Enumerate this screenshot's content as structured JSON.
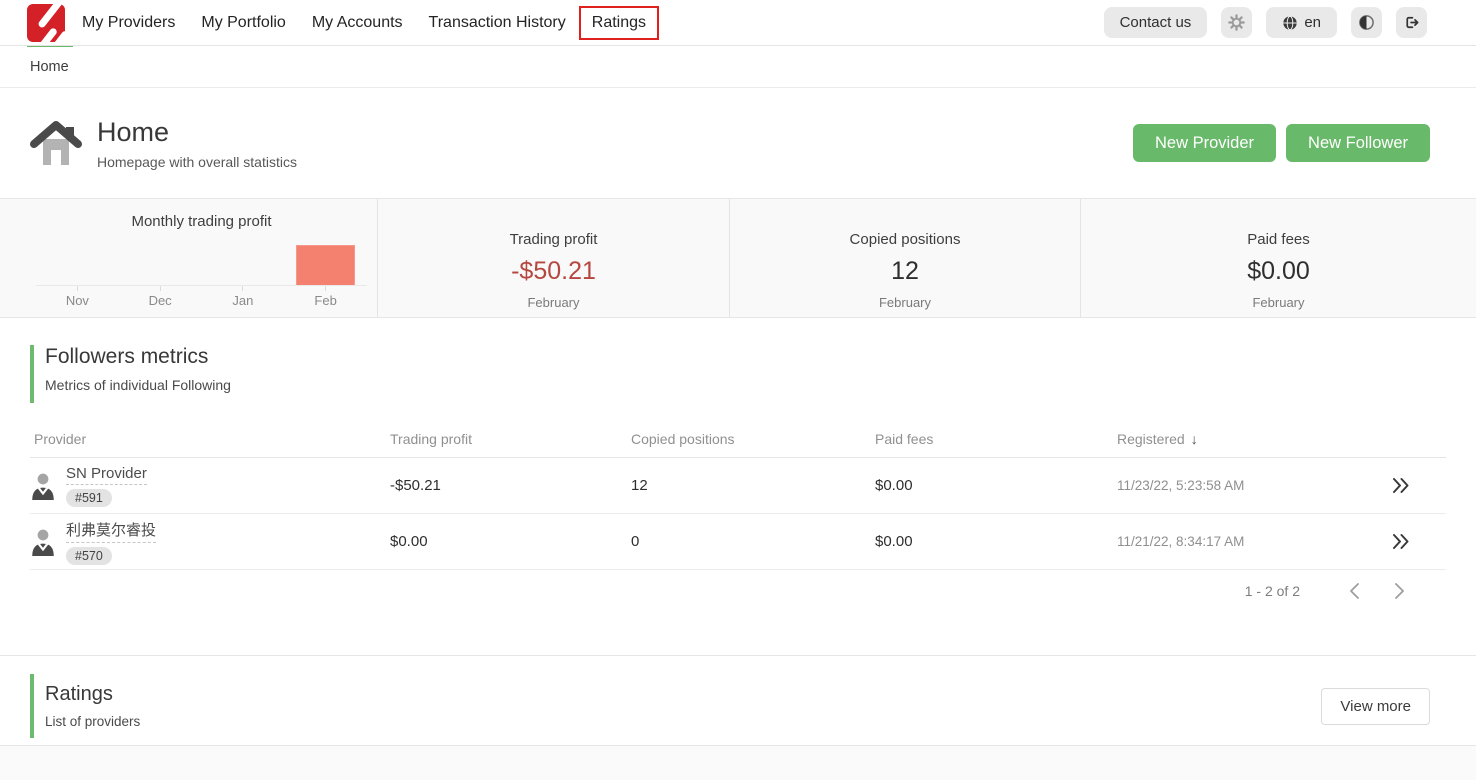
{
  "nav": {
    "items": [
      {
        "label": "My Providers"
      },
      {
        "label": "My Portfolio"
      },
      {
        "label": "My Accounts"
      },
      {
        "label": "Transaction History"
      },
      {
        "label": "Ratings",
        "annotated": true
      }
    ],
    "contact_label": "Contact us",
    "language_label": "en"
  },
  "breadcrumb": {
    "label": "Home"
  },
  "header": {
    "title": "Home",
    "subtitle": "Homepage with overall statistics",
    "new_provider_label": "New Provider",
    "new_follower_label": "New Follower"
  },
  "chart_data": {
    "type": "bar",
    "title": "Monthly trading profit",
    "categories": [
      "Nov",
      "Dec",
      "Jan",
      "Feb"
    ],
    "values": [
      0,
      0,
      0,
      -50.21
    ],
    "ylim": [
      0,
      60
    ],
    "bar_color": "#f4806f",
    "bar_border": "#f6998a",
    "xlabel": "",
    "ylabel": ""
  },
  "stats": {
    "cards": [
      {
        "title": "Trading profit",
        "value": "-$50.21",
        "period": "February",
        "negative": true
      },
      {
        "title": "Copied positions",
        "value": "12",
        "period": "February",
        "negative": false
      },
      {
        "title": "Paid fees",
        "value": "$0.00",
        "period": "February",
        "negative": false
      }
    ]
  },
  "followers": {
    "title": "Followers metrics",
    "subtitle": "Metrics of individual Following",
    "columns": [
      "Provider",
      "Trading profit",
      "Copied positions",
      "Paid fees",
      "Registered"
    ],
    "sort_column": "Registered",
    "rows": [
      {
        "name": "SN Provider",
        "id_badge": "#591",
        "trading_profit": "-$50.21",
        "copied_positions": "12",
        "paid_fees": "$0.00",
        "registered": "11/23/22, 5:23:58 AM"
      },
      {
        "name": "利弗莫尔睿投",
        "id_badge": "#570",
        "trading_profit": "$0.00",
        "copied_positions": "0",
        "paid_fees": "$0.00",
        "registered": "11/21/22, 8:34:17 AM"
      }
    ],
    "pagination": {
      "range_label": "1 - 2 of 2"
    }
  },
  "ratings": {
    "title": "Ratings",
    "subtitle": "List of providers",
    "view_more_label": "View more"
  },
  "colors": {
    "accent_green": "#69b96a",
    "negative_red": "#b5473f",
    "bar_salmon": "#f4806f",
    "annotation_red": "#e01f1f",
    "logo_red": "#d42027"
  }
}
